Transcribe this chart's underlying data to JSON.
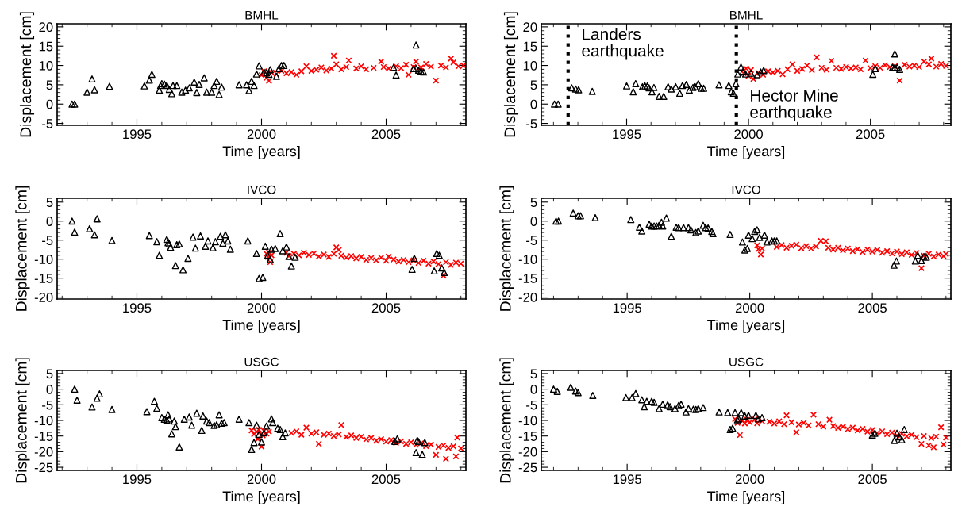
{
  "chart_data": [
    {
      "type": "scatter",
      "title": "BMHL",
      "xlabel": "Time [years]",
      "ylabel": "Displacement [cm]",
      "xlim": [
        1991.8,
        2008.2
      ],
      "xticks": [
        1995,
        2000,
        2005
      ],
      "ylim": [
        -5.5,
        20.8
      ],
      "yticks": [
        -5,
        0,
        5,
        10,
        15,
        20
      ],
      "grid": false,
      "series": [
        {
          "color": "#ff0000",
          "marker": "cross",
          "x": [
            2000.0,
            2000.1,
            2000.2,
            2000.3,
            2000.4,
            2000.6,
            2000.8,
            2001.0,
            2001.2,
            2001.4,
            2001.6,
            2001.8,
            2002.0,
            2002.2,
            2002.4,
            2002.6,
            2002.8,
            2002.9,
            2003.0,
            2003.2,
            2003.4,
            2003.5,
            2003.8,
            2004.0,
            2004.2,
            2004.5,
            2004.8,
            2004.9,
            2005.1,
            2005.4,
            2005.6,
            2005.8,
            2005.9,
            2006.1,
            2006.2,
            2006.4,
            2006.6,
            2006.8,
            2007.0,
            2007.2,
            2007.4,
            2007.6,
            2007.7,
            2007.9,
            2008.1
          ],
          "values": [
            7.5,
            8.5,
            6.8,
            6.0,
            8.2,
            7.8,
            8.6,
            8.0,
            8.3,
            7.6,
            8.5,
            9.8,
            8.6,
            8.9,
            9.5,
            8.7,
            9.2,
            12.5,
            10.3,
            9.0,
            9.6,
            11.3,
            9.2,
            9.8,
            9.0,
            9.4,
            11.0,
            9.6,
            9.2,
            9.8,
            9.3,
            10.2,
            7.6,
            9.6,
            11.0,
            9.5,
            10.4,
            9.7,
            6.1,
            10.0,
            9.5,
            11.8,
            10.8,
            9.8,
            10.0
          ]
        },
        {
          "color": "#000000",
          "marker": "triangle",
          "x": [
            1992.4,
            1992.5,
            1993.0,
            1993.2,
            1993.3,
            1993.9,
            1995.3,
            1995.5,
            1995.6,
            1995.9,
            1995.95,
            1996.0,
            1996.1,
            1996.2,
            1996.3,
            1996.4,
            1996.45,
            1996.6,
            1996.8,
            1996.95,
            1997.1,
            1997.3,
            1997.4,
            1997.5,
            1997.7,
            1997.8,
            1998.0,
            1998.1,
            1998.2,
            1998.3,
            1998.4,
            1999.1,
            1999.4,
            1999.5,
            1999.6,
            1999.7,
            1999.8,
            1999.9,
            2000.1,
            2000.2,
            2000.3,
            2000.35,
            2000.6,
            2000.7,
            2000.8,
            2000.9,
            2005.3,
            2005.4,
            2006.1,
            2006.2,
            2006.3,
            2006.4,
            2006.5,
            2006.2
          ],
          "values": [
            0,
            0,
            3.1,
            6.5,
            3.7,
            4.6,
            4.7,
            6.2,
            7.7,
            3.6,
            4.8,
            5.3,
            5.2,
            4.8,
            3.8,
            2.7,
            4.8,
            4.8,
            3.1,
            3.6,
            4.2,
            5.7,
            3.0,
            5.1,
            6.8,
            3.1,
            3.1,
            4.8,
            5.9,
            2.5,
            4.4,
            5.0,
            5.0,
            3.5,
            5.9,
            4.8,
            7.8,
            9.9,
            8.3,
            8.1,
            7.7,
            8.9,
            7.2,
            9.2,
            10,
            10,
            9.5,
            7.5,
            9.2,
            9.2,
            8.8,
            8.5,
            8.3,
            15.3
          ]
        }
      ]
    },
    {
      "type": "scatter",
      "title": "BMHL",
      "xlabel": "Time [years]",
      "ylabel": "Displacement [cm]",
      "xlim": [
        1991.5,
        2008.3
      ],
      "xticks": [
        1995,
        2000,
        2005
      ],
      "ylim": [
        -5.5,
        20.8
      ],
      "yticks": [
        -5,
        0,
        5,
        10,
        15,
        20
      ],
      "grid": false,
      "ref_lines": [
        {
          "axis": "x",
          "value": 1992.6,
          "label": "Landers\nearthquake",
          "color": "#000000",
          "line_style": "dotted"
        },
        {
          "axis": "x",
          "value": 1999.5,
          "label": "Hector Mine\nearthquake",
          "color": "#000000",
          "line_style": "dotted"
        }
      ],
      "series": [
        {
          "color": "#ff0000",
          "marker": "cross",
          "x": [
            1999.8,
            1999.9,
            2000.0,
            2000.1,
            2000.2,
            2000.4,
            2000.6,
            2000.8,
            2001.0,
            2001.2,
            2001.4,
            2001.6,
            2001.8,
            2002.0,
            2002.2,
            2002.4,
            2002.6,
            2002.8,
            2003.0,
            2003.2,
            2003.4,
            2003.6,
            2003.8,
            2004.0,
            2004.2,
            2004.4,
            2004.6,
            2004.8,
            2005.0,
            2005.2,
            2005.4,
            2005.6,
            2005.8,
            2006.0,
            2006.2,
            2006.4,
            2006.6,
            2006.8,
            2007.0,
            2007.2,
            2007.4,
            2007.5,
            2007.7,
            2007.9,
            2008.1
          ],
          "values": [
            8.0,
            9.2,
            7.3,
            8.8,
            6.5,
            8.1,
            7.6,
            8.5,
            8.2,
            8.6,
            7.7,
            9.0,
            10.3,
            8.6,
            9.1,
            10.0,
            8.8,
            12.1,
            9.4,
            8.9,
            11.2,
            9.4,
            9.1,
            9.6,
            9.2,
            9.5,
            9.0,
            11.3,
            9.3,
            9.8,
            9.4,
            10.1,
            9.6,
            9.8,
            6.1,
            10.2,
            9.7,
            10.0,
            9.6,
            11.0,
            10.3,
            11.8,
            9.7,
            10.4,
            9.9
          ]
        },
        {
          "color": "#000000",
          "marker": "triangle",
          "x": [
            1992.04,
            1992.19,
            1992.75,
            1992.91,
            1993.03,
            1993.59,
            1995.0,
            1995.27,
            1995.37,
            1995.65,
            1995.75,
            1995.85,
            1995.92,
            1996.04,
            1996.12,
            1996.33,
            1996.52,
            1996.7,
            1996.83,
            1997.01,
            1997.18,
            1997.29,
            1997.45,
            1997.57,
            1997.72,
            1997.81,
            1997.94,
            1998.06,
            1998.16,
            1998.79,
            1999.19,
            1999.29,
            1999.38,
            1999.48,
            1999.56,
            1999.69,
            1999.78,
            1999.88,
            2000.1,
            2000.35,
            2000.5,
            2000.62,
            2005.1,
            2005.2,
            2005.91,
            2006.0,
            2006.1,
            2006.2,
            2006.0
          ],
          "values": [
            0,
            0,
            4.2,
            3.9,
            3.7,
            3.3,
            4.7,
            3.2,
            5.3,
            4.5,
            4.7,
            4.7,
            4.2,
            3.2,
            4.3,
            2.0,
            2.0,
            4.5,
            3.9,
            4.5,
            2.8,
            4.8,
            5.1,
            3.6,
            4.3,
            4.5,
            5.3,
            4.1,
            4.1,
            5.0,
            4.8,
            3.2,
            2.8,
            5.3,
            7.8,
            9.6,
            8.5,
            7.8,
            8.0,
            7.6,
            8.3,
            8.7,
            7.7,
            9.2,
            9.5,
            9.5,
            9.5,
            9.0,
            13.0
          ]
        }
      ]
    },
    {
      "type": "scatter",
      "title": "IVCO",
      "xlabel": "Time [years]",
      "ylabel": "Displacement [cm]",
      "xlim": [
        1991.8,
        2008.2
      ],
      "xticks": [
        1995,
        2000,
        2005
      ],
      "ylim": [
        -20.5,
        6
      ],
      "yticks": [
        -20,
        -15,
        -10,
        -5,
        0,
        5
      ],
      "grid": false,
      "series": [
        {
          "color": "#ff0000",
          "marker": "cross",
          "x": [
            2000.2,
            2000.25,
            2000.3,
            2000.35,
            2000.4,
            2001.0,
            2001.1,
            2001.3,
            2001.5,
            2001.7,
            2001.9,
            2002.1,
            2002.3,
            2002.5,
            2002.7,
            2002.9,
            2003.0,
            2003.1,
            2003.2,
            2003.4,
            2003.6,
            2003.8,
            2004.0,
            2004.2,
            2004.4,
            2004.6,
            2004.8,
            2005.0,
            2005.1,
            2005.3,
            2005.5,
            2005.7,
            2005.9,
            2006.1,
            2006.3,
            2006.5,
            2006.7,
            2006.9,
            2007.1,
            2007.3,
            2007.4,
            2007.6,
            2007.8,
            2008.0
          ],
          "values": [
            -8.6,
            -9.4,
            -8.2,
            -10.8,
            -9.0,
            -8.3,
            -9.2,
            -8.6,
            -9.0,
            -8.3,
            -8.9,
            -8.5,
            -9.3,
            -8.8,
            -9.4,
            -8.6,
            -6.9,
            -7.6,
            -9.1,
            -9.6,
            -9.2,
            -9.8,
            -9.4,
            -10.2,
            -9.7,
            -10.3,
            -9.6,
            -10.4,
            -9.3,
            -10.1,
            -10.6,
            -10.2,
            -10.8,
            -10.3,
            -11.0,
            -10.4,
            -11.2,
            -10.6,
            -11.3,
            -14.3,
            -10.8,
            -11.5,
            -10.9,
            -11.2
          ]
        },
        {
          "color": "#000000",
          "marker": "triangle",
          "x": [
            1992.4,
            1992.5,
            1993.1,
            1993.3,
            1993.4,
            1994.0,
            1995.5,
            1995.8,
            1995.9,
            1996.2,
            1996.25,
            1996.3,
            1996.35,
            1996.6,
            1996.7,
            1996.55,
            1996.85,
            1997.05,
            1997.25,
            1997.35,
            1997.55,
            1997.75,
            1997.85,
            1998.05,
            1998.15,
            1998.35,
            1998.45,
            1998.55,
            1998.65,
            1998.75,
            1999.45,
            1999.8,
            1999.9,
            2000.05,
            2000.15,
            2000.25,
            2000.35,
            2000.4,
            2000.55,
            2000.75,
            2000.85,
            2001.0,
            2001.1,
            2001.2,
            2001.35,
            2006.04,
            2006.13,
            2006.93,
            2007.03,
            2007.13,
            2007.23,
            2007.33
          ],
          "values": [
            0,
            -2.9,
            -2.0,
            -3.6,
            0.6,
            -5.1,
            -3.8,
            -5.4,
            -9.0,
            -4.8,
            -5.7,
            -6.0,
            -6.9,
            -6.2,
            -6.0,
            -11.7,
            -12.8,
            -9.8,
            -4.2,
            -7.1,
            -3.9,
            -6.6,
            -5.2,
            -7.0,
            -5.4,
            -4.0,
            -5.8,
            -3.6,
            -5.2,
            -7.4,
            -5.2,
            -8.5,
            -15.1,
            -14.8,
            -6.6,
            -9.0,
            -10.1,
            -7.4,
            -7.2,
            -3.3,
            -7.8,
            -6.8,
            -9.3,
            -11.8,
            -9.5,
            -12.7,
            -9.8,
            -13.1,
            -8.5,
            -9.0,
            -12.3,
            -13.5
          ]
        }
      ]
    },
    {
      "type": "scatter",
      "title": "IVCO",
      "xlabel": "Time [years]",
      "ylabel": "Displacement [cm]",
      "xlim": [
        1991.5,
        2008.2
      ],
      "xticks": [
        1995,
        2000,
        2005
      ],
      "ylim": [
        -20.5,
        6
      ],
      "yticks": [
        -20,
        -15,
        -10,
        -5,
        0,
        5
      ],
      "grid": false,
      "series": [
        {
          "color": "#ff0000",
          "marker": "cross",
          "x": [
            2000.3,
            2000.35,
            2000.4,
            2000.45,
            2000.5,
            2000.95,
            2001.1,
            2001.3,
            2001.5,
            2001.7,
            2001.9,
            2002.1,
            2002.3,
            2002.5,
            2002.7,
            2002.9,
            2003.1,
            2003.2,
            2003.4,
            2003.6,
            2003.8,
            2004.0,
            2004.2,
            2004.4,
            2004.6,
            2004.8,
            2005.0,
            2005.2,
            2005.4,
            2005.6,
            2005.8,
            2006.0,
            2006.2,
            2006.4,
            2006.6,
            2006.8,
            2007.0,
            2007.1,
            2007.3,
            2007.5,
            2007.7,
            2007.9,
            2008.0
          ],
          "values": [
            -6.4,
            -7.4,
            null,
            -8.8,
            -7.2,
            null,
            -6.8,
            -6.3,
            -7.0,
            -6.5,
            -6.2,
            -7.1,
            -6.6,
            -7.2,
            -6.7,
            -5.2,
            -5.3,
            -7.0,
            -7.5,
            -7.0,
            -7.7,
            -7.2,
            -7.9,
            -7.4,
            -8.1,
            -7.5,
            -8.0,
            -7.6,
            -8.3,
            -7.9,
            -8.5,
            -8.0,
            -8.7,
            -8.2,
            -8.9,
            -8.4,
            -12.4,
            -9.1,
            -8.6,
            -9.3,
            -8.8,
            -9.2,
            -8.7
          ]
        },
        {
          "color": "#000000",
          "marker": "triangle",
          "x": [
            1992.1,
            1992.2,
            1992.8,
            1993.0,
            1993.1,
            1993.7,
            1995.15,
            1995.5,
            1995.6,
            1995.9,
            1996.0,
            1996.1,
            1996.2,
            1996.3,
            1996.4,
            1996.45,
            1996.6,
            1996.8,
            1997.0,
            1997.1,
            1997.3,
            1997.5,
            1997.6,
            1997.8,
            1997.9,
            1998.1,
            1998.2,
            1998.3,
            1998.45,
            1998.5,
            1999.2,
            1999.7,
            1999.8,
            1999.9,
            1999.95,
            2000.1,
            2000.2,
            2000.3,
            2000.4,
            2000.6,
            2000.7,
            2000.9,
            2001.0,
            2001.1,
            2005.88,
            2005.98,
            2006.75,
            2006.85,
            2007.0,
            2007.1,
            2007.2
          ],
          "values": [
            0,
            0,
            2.1,
            1.4,
            1.4,
            0.9,
            0.4,
            -1.6,
            -2.6,
            -0.8,
            -1.3,
            -1.3,
            -1.3,
            -1.1,
            -0.3,
            -1.3,
            0.8,
            -4.0,
            -1.6,
            -1.7,
            -1.7,
            -1.7,
            -2.3,
            -3.0,
            -2.6,
            -1.1,
            -1.7,
            -1.8,
            -2.7,
            -3.3,
            -3.5,
            -5.5,
            -7.6,
            -7.2,
            -3.7,
            -4.6,
            -2.7,
            -2.3,
            -4.3,
            -3.7,
            -5.5,
            -5.2,
            -5.2,
            -5.2,
            -11.6,
            -10.5,
            -10.5,
            -9.0,
            -10.4,
            -9.3,
            -9.5
          ]
        }
      ]
    },
    {
      "type": "scatter",
      "title": "USGC",
      "xlabel": "Time [years]",
      "ylabel": "Displacement [cm]",
      "xlim": [
        1991.8,
        2008.2
      ],
      "xticks": [
        1995,
        2000,
        2005
      ],
      "ylim": [
        -26,
        6
      ],
      "yticks": [
        -25,
        -20,
        -15,
        -10,
        -5,
        0,
        5
      ],
      "grid": false,
      "series": [
        {
          "color": "#ff0000",
          "marker": "cross",
          "x": [
            1999.6,
            1999.7,
            1999.8,
            1999.85,
            1999.9,
            2000.0,
            2000.05,
            2000.1,
            2000.2,
            2000.3,
            2001.2,
            2001.4,
            2001.6,
            2001.8,
            2002.0,
            2002.2,
            2002.3,
            2002.5,
            2002.7,
            2002.9,
            2003.1,
            2003.2,
            2003.4,
            2003.6,
            2003.8,
            2004.0,
            2004.2,
            2004.4,
            2004.6,
            2004.8,
            2005.0,
            2005.2,
            2005.4,
            2005.6,
            2005.8,
            2006.0,
            2006.2,
            2006.4,
            2006.6,
            2006.8,
            2007.0,
            2007.1,
            2007.3,
            2007.4,
            2007.5,
            2007.7,
            2007.8,
            2007.85,
            2008.0
          ],
          "values": [
            -13.2,
            -14.4,
            -13.6,
            -16.0,
            -13.0,
            -18.4,
            -14.8,
            -13.4,
            -14.2,
            -13.6,
            -14.0,
            -13.5,
            -14.6,
            -12.3,
            -14.2,
            -13.8,
            -17.5,
            -14.6,
            -14.2,
            -15.0,
            -14.5,
            -11.5,
            -15.3,
            -14.8,
            -15.6,
            -15.2,
            -16.1,
            -15.6,
            -16.5,
            -16.0,
            -16.8,
            -16.3,
            -17.2,
            -16.7,
            -17.5,
            -17.0,
            -17.8,
            -17.3,
            -18.2,
            -17.7,
            -21.0,
            -18.5,
            -18.0,
            -22.3,
            -18.8,
            -18.3,
            -21.5,
            -15.5,
            -19.0
          ]
        },
        {
          "color": "#000000",
          "marker": "triangle",
          "x": [
            1992.5,
            1992.6,
            1993.2,
            1993.4,
            1993.5,
            1994.0,
            1995.4,
            1995.7,
            1995.8,
            1996.0,
            1996.1,
            1996.2,
            1996.25,
            1996.3,
            1996.4,
            1996.5,
            1996.55,
            1996.7,
            1996.9,
            1997.1,
            1997.2,
            1997.4,
            1997.6,
            1997.65,
            1997.8,
            1997.9,
            1998.1,
            1998.2,
            1998.3,
            1998.4,
            1998.5,
            1999.1,
            1999.5,
            1999.6,
            1999.7,
            1999.8,
            1999.9,
            2000.0,
            2000.1,
            2000.2,
            2000.4,
            2000.45,
            2000.65,
            2000.75,
            2000.85,
            2000.95,
            2005.35,
            2005.45,
            2006.25,
            2006.3,
            2006.55,
            2006.2,
            2006.45
          ],
          "values": [
            0,
            -3.5,
            -5.7,
            -2.9,
            -1.5,
            -6.5,
            -7.2,
            -3.9,
            -6.1,
            -9.1,
            -9.6,
            -10.0,
            -8.2,
            -9.5,
            -14.3,
            -10.2,
            -12.0,
            -18.5,
            -9.6,
            -8.9,
            -11.5,
            -7.7,
            -13.2,
            -8.6,
            -10.2,
            -10.7,
            -11.6,
            -11.4,
            -8.2,
            -10.9,
            -10.7,
            -9.6,
            -10.7,
            -19.3,
            -17.1,
            -11.5,
            -14.5,
            -16.9,
            -14.0,
            -11.8,
            -9.5,
            -10.7,
            -12.5,
            -12.9,
            -15.2,
            -14.0,
            -16.7,
            -15.9,
            -16.4,
            -16.8,
            -17.1,
            -20.3,
            -20.9
          ]
        }
      ]
    },
    {
      "type": "scatter",
      "title": "USGC",
      "xlabel": "Time [years]",
      "ylabel": "Displacement [cm]",
      "xlim": [
        1991.5,
        2008.2
      ],
      "xticks": [
        1995,
        2000,
        2005
      ],
      "ylim": [
        -26,
        6
      ],
      "yticks": [
        -25,
        -20,
        -15,
        -10,
        -5,
        0,
        5
      ],
      "grid": false,
      "series": [
        {
          "color": "#ff0000",
          "marker": "cross",
          "x": [
            1999.4,
            1999.5,
            1999.6,
            1999.7,
            1999.8,
            1999.9,
            2000.0,
            2000.2,
            2000.3,
            2000.5,
            2000.8,
            2001.0,
            2001.2,
            2001.4,
            2001.5,
            2001.7,
            2001.9,
            2002.0,
            2002.2,
            2002.4,
            2002.6,
            2002.8,
            2003.0,
            2003.25,
            2003.4,
            2003.6,
            2003.8,
            2004.0,
            2004.2,
            2004.4,
            2004.6,
            2004.8,
            2005.0,
            2005.2,
            2005.4,
            2005.6,
            2005.8,
            2006.0,
            2006.2,
            2006.4,
            2006.6,
            2006.8,
            2007.0,
            2007.1,
            2007.3,
            2007.4,
            2007.5,
            2007.6,
            2007.8,
            2007.9,
            2008.0
          ],
          "values": [
            -9.6,
            -10.8,
            -14.7,
            -10.2,
            -11.0,
            -9.8,
            -10.6,
            -9.7,
            -10.9,
            -10.2,
            -10.4,
            -11.0,
            -10.3,
            -11.2,
            -8.4,
            -10.6,
            -13.8,
            -11.3,
            -10.8,
            -11.6,
            -8.2,
            -11.2,
            -12.0,
            -9.8,
            -11.8,
            -12.4,
            -12.0,
            -12.8,
            -12.3,
            -13.2,
            -12.7,
            -13.6,
            -13.1,
            -14.0,
            -13.5,
            -14.4,
            -13.9,
            -14.8,
            -14.3,
            -15.1,
            -14.6,
            -15.4,
            -17.5,
            -15.0,
            -18.0,
            -15.7,
            -18.6,
            -15.2,
            -12.2,
            -17.7,
            -15.5
          ]
        },
        {
          "color": "#000000",
          "marker": "triangle",
          "x": [
            1992.0,
            1992.15,
            1992.7,
            1992.9,
            1993.0,
            1993.6,
            1994.95,
            1995.2,
            1995.35,
            1995.6,
            1995.7,
            1995.8,
            1996.0,
            1996.1,
            1996.3,
            1996.45,
            1996.65,
            1996.75,
            1996.95,
            1997.1,
            1997.2,
            1997.4,
            1997.5,
            1997.7,
            1997.8,
            1997.9,
            1998.1,
            1998.75,
            1999.1,
            1999.2,
            1999.3,
            1999.4,
            1999.5,
            1999.55,
            1999.65,
            1999.8,
            1999.95,
            2000.25,
            2000.35,
            2000.5,
            2005.0,
            2005.1,
            2005.9,
            2006.0,
            2006.1,
            2006.2,
            2006.3
          ],
          "values": [
            0,
            -0.7,
            0.6,
            -0.6,
            -1.1,
            -2.0,
            -2.7,
            -2.7,
            -1.4,
            -3.4,
            -5.6,
            -3.9,
            -3.9,
            -4.2,
            -6.2,
            -4.8,
            -5.0,
            -5.6,
            -6.2,
            -5.2,
            -4.8,
            -7.3,
            -6.2,
            -6.4,
            -6.5,
            -6.2,
            -5.9,
            -7.3,
            -7.5,
            -12.9,
            -12.5,
            -7.5,
            -9.8,
            -9.5,
            -7.5,
            -8.6,
            -8.4,
            -8.4,
            -9.5,
            -9.1,
            -14.7,
            -14.1,
            -16.4,
            -14.1,
            -15.3,
            -16.2,
            -12.9
          ]
        }
      ]
    }
  ]
}
